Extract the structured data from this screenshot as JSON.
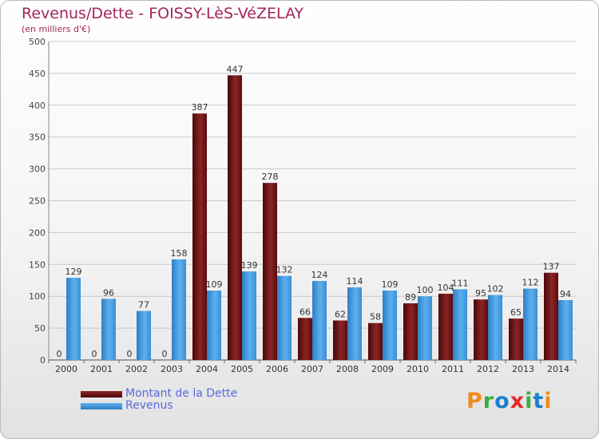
{
  "title": "Revenus/Dette - FOISSY-LèS-VéZELAY",
  "subtitle": "(en milliers d'€)",
  "colors": {
    "dette": "#6b0f10",
    "revenus": "#3b95dc",
    "title": "#a3245a",
    "legend": "#5a68e0"
  },
  "logo": {
    "text": "Proxiti",
    "letters": [
      {
        "ch": "P",
        "color": "#ef8a1c"
      },
      {
        "ch": "r",
        "color": "#3cae3c"
      },
      {
        "ch": "o",
        "color": "#1a7fcf"
      },
      {
        "ch": "x",
        "color": "#e52a2a"
      },
      {
        "ch": "i",
        "color": "#3cae3c"
      },
      {
        "ch": "t",
        "color": "#1a7fcf"
      },
      {
        "ch": "i",
        "color": "#ef8a1c"
      }
    ]
  },
  "chart_data": {
    "type": "bar",
    "title": "Revenus/Dette - FOISSY-LèS-VéZELAY",
    "ylabel": "(en milliers d'€)",
    "categories": [
      "2000",
      "2001",
      "2002",
      "2003",
      "2004",
      "2005",
      "2006",
      "2007",
      "2008",
      "2009",
      "2010",
      "2011",
      "2012",
      "2013",
      "2014"
    ],
    "series": [
      {
        "name": "Montant de la Dette",
        "values": [
          0,
          0,
          0,
          0,
          387,
          447,
          278,
          66,
          62,
          58,
          89,
          104,
          95,
          65,
          137
        ]
      },
      {
        "name": "Revenus",
        "values": [
          129,
          96,
          77,
          158,
          109,
          139,
          132,
          124,
          114,
          109,
          100,
          111,
          102,
          112,
          94
        ]
      }
    ],
    "yticks": [
      0,
      50,
      100,
      150,
      200,
      250,
      300,
      350,
      400,
      450,
      500
    ],
    "ylim": [
      0,
      500
    ],
    "grid": true,
    "legend": "bottom-left"
  }
}
